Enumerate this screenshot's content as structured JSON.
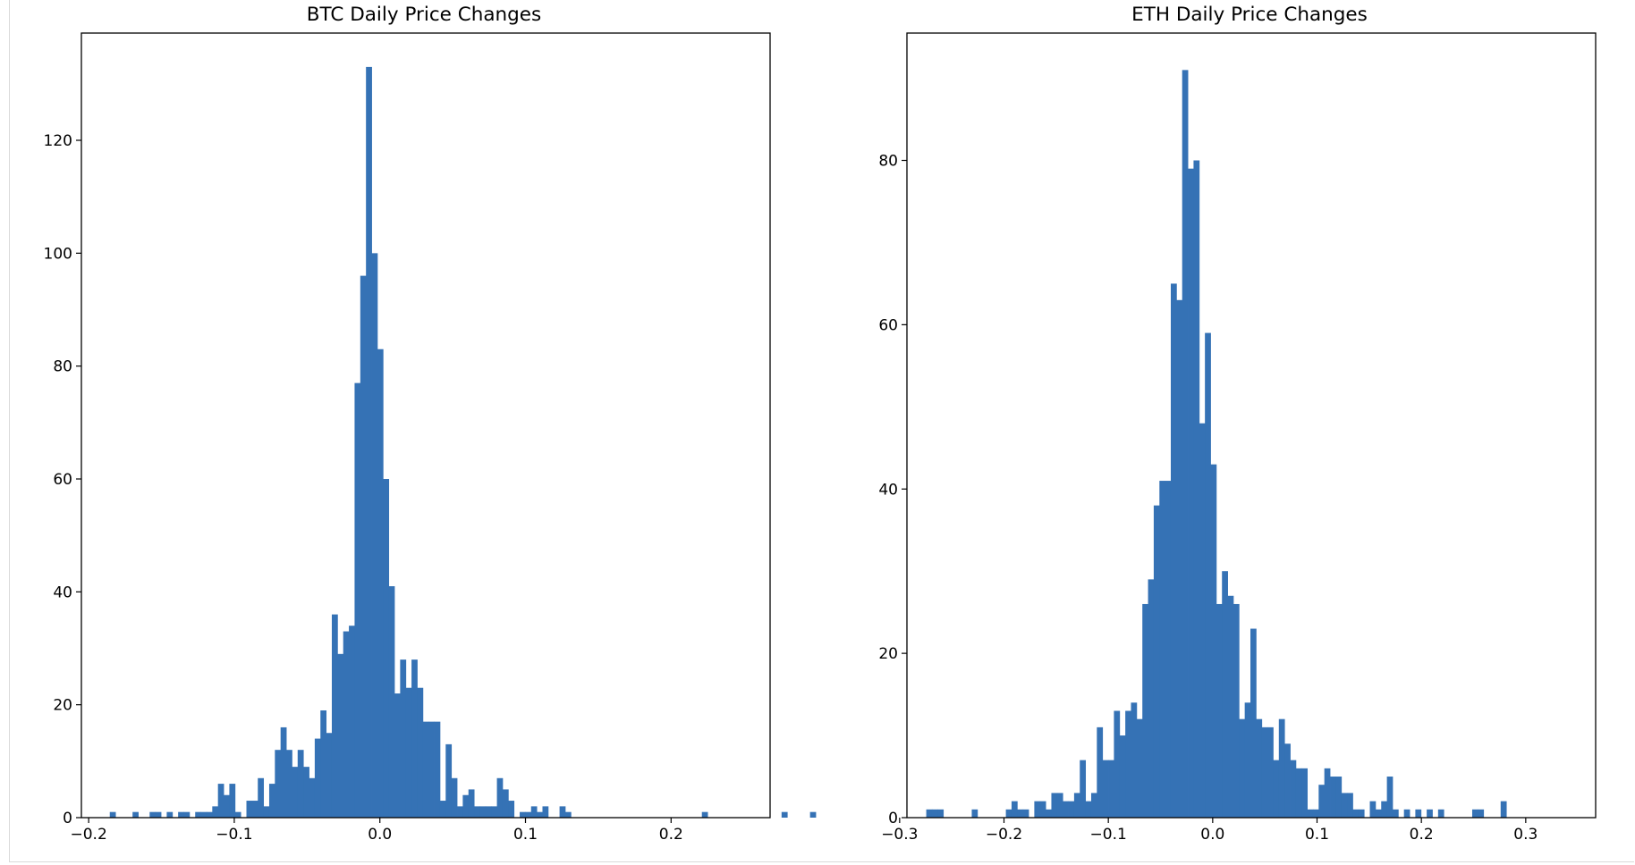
{
  "chart_data": [
    {
      "type": "bar",
      "title": "BTC Daily Price Changes",
      "xlabel": "",
      "ylabel": "",
      "xlim": [
        -0.205,
        0.268
      ],
      "ylim": [
        0,
        139
      ],
      "xticks": [
        -0.2,
        -0.1,
        0.0,
        0.1,
        0.2
      ],
      "xtick_labels": [
        "−0.2",
        "−0.1",
        "0.0",
        "0.1",
        "0.2"
      ],
      "yticks": [
        0,
        20,
        40,
        60,
        80,
        100,
        120
      ],
      "ytick_labels": [
        "0",
        "20",
        "40",
        "60",
        "80",
        "100",
        "120"
      ],
      "bar_color": "#3572b5",
      "bins": {
        "start": -0.1855,
        "width": 0.00391,
        "counts": [
          1,
          0,
          0,
          0,
          1,
          0,
          0,
          1,
          1,
          0,
          1,
          0,
          1,
          1,
          0,
          1,
          1,
          1,
          2,
          6,
          4,
          6,
          1,
          0,
          3,
          3,
          7,
          2,
          6,
          12,
          16,
          12,
          9,
          12,
          9,
          7,
          14,
          19,
          15,
          36,
          29,
          33,
          34,
          77,
          96,
          133,
          100,
          83,
          60,
          41,
          22,
          28,
          23,
          28,
          23,
          17,
          17,
          17,
          3,
          13,
          7,
          2,
          4,
          5,
          2,
          2,
          2,
          2,
          7,
          5,
          3,
          0,
          1,
          1,
          2,
          1,
          2,
          0,
          0,
          2,
          1,
          0,
          0,
          0,
          0,
          0,
          0,
          0,
          0,
          0,
          0,
          0,
          0,
          0,
          0,
          0,
          0,
          0,
          0,
          0,
          0,
          0,
          0,
          0,
          1,
          0,
          0,
          0,
          0,
          0,
          0,
          0,
          0,
          0,
          0,
          0,
          0,
          0,
          1,
          0,
          0,
          0,
          0,
          1
        ]
      }
    },
    {
      "type": "bar",
      "title": "ETH Daily Price Changes",
      "xlabel": "",
      "ylabel": "",
      "xlim": [
        -0.293,
        0.367
      ],
      "ylim": [
        0,
        95.5
      ],
      "xticks": [
        -0.3,
        -0.2,
        -0.1,
        0.0,
        0.1,
        0.2,
        0.3
      ],
      "xtick_labels": [
        "−0.3",
        "−0.2",
        "−0.1",
        "0.0",
        "0.1",
        "0.2",
        "0.3"
      ],
      "yticks": [
        0,
        20,
        40,
        60,
        80
      ],
      "ytick_labels": [
        "0",
        "20",
        "40",
        "60",
        "80"
      ],
      "bar_color": "#3572b5",
      "bins": {
        "start": -0.2745,
        "width": 0.00545,
        "counts": [
          1,
          1,
          1,
          0,
          0,
          0,
          0,
          0,
          1,
          0,
          0,
          0,
          0,
          0,
          1,
          2,
          1,
          1,
          0,
          2,
          2,
          1,
          3,
          3,
          2,
          2,
          3,
          7,
          2,
          3,
          11,
          7,
          7,
          13,
          10,
          13,
          14,
          12,
          26,
          29,
          38,
          41,
          41,
          65,
          63,
          91,
          79,
          80,
          48,
          59,
          43,
          26,
          30,
          27,
          26,
          12,
          14,
          23,
          12,
          11,
          11,
          7,
          12,
          9,
          7,
          6,
          6,
          1,
          1,
          4,
          6,
          5,
          5,
          3,
          3,
          1,
          1,
          0,
          2,
          1,
          2,
          5,
          1,
          0,
          1,
          0,
          1,
          0,
          1,
          0,
          1,
          0,
          0,
          0,
          0,
          0,
          1,
          1,
          0,
          0,
          0,
          2
        ]
      }
    }
  ]
}
